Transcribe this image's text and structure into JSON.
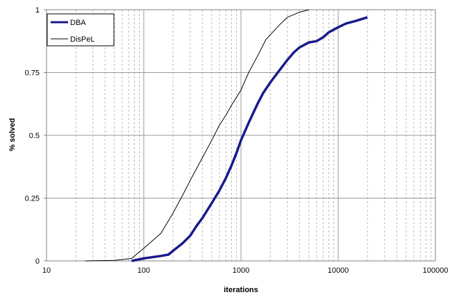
{
  "chart_data": {
    "type": "line",
    "title": "",
    "xlabel": "iterations",
    "ylabel": "% solved",
    "x_scale": "log",
    "xlim": [
      10,
      100000
    ],
    "ylim": [
      0,
      1
    ],
    "x_ticks": [
      10,
      100,
      1000,
      10000,
      100000
    ],
    "x_tick_labels": [
      "10",
      "100",
      "1000",
      "10000",
      "100000"
    ],
    "y_ticks": [
      0,
      0.25,
      0.5,
      0.75,
      1
    ],
    "y_tick_labels": [
      "0",
      "0.25",
      "0.5",
      "0.75",
      "1"
    ],
    "grid": {
      "major": true,
      "minor_x": true,
      "minor_style": "dashed"
    },
    "legend_position": "top-left",
    "series": [
      {
        "name": "DBA",
        "color": "#1a1a8c",
        "line_style": "thick",
        "x": [
          75,
          100,
          150,
          180,
          200,
          250,
          300,
          350,
          400,
          500,
          600,
          700,
          800,
          900,
          1000,
          1200,
          1500,
          1700,
          2000,
          2500,
          3000,
          3500,
          4000,
          5000,
          6000,
          7000,
          8000,
          10000,
          12000,
          15000,
          20000
        ],
        "y": [
          0.0,
          0.01,
          0.02,
          0.025,
          0.04,
          0.07,
          0.1,
          0.14,
          0.17,
          0.23,
          0.28,
          0.33,
          0.38,
          0.43,
          0.48,
          0.55,
          0.63,
          0.67,
          0.71,
          0.76,
          0.8,
          0.83,
          0.85,
          0.87,
          0.875,
          0.89,
          0.91,
          0.93,
          0.945,
          0.955,
          0.97
        ]
      },
      {
        "name": "DisPeL",
        "color": "#000000",
        "line_style": "thin",
        "x": [
          25,
          50,
          75,
          100,
          150,
          200,
          250,
          300,
          400,
          500,
          600,
          700,
          800,
          1000,
          1200,
          1500,
          1800,
          2000,
          2500,
          3000,
          4000,
          5000
        ],
        "y": [
          0.0,
          0.002,
          0.01,
          0.05,
          0.11,
          0.19,
          0.26,
          0.32,
          0.41,
          0.48,
          0.54,
          0.58,
          0.62,
          0.68,
          0.75,
          0.82,
          0.88,
          0.9,
          0.94,
          0.97,
          0.99,
          1.0
        ]
      }
    ]
  }
}
